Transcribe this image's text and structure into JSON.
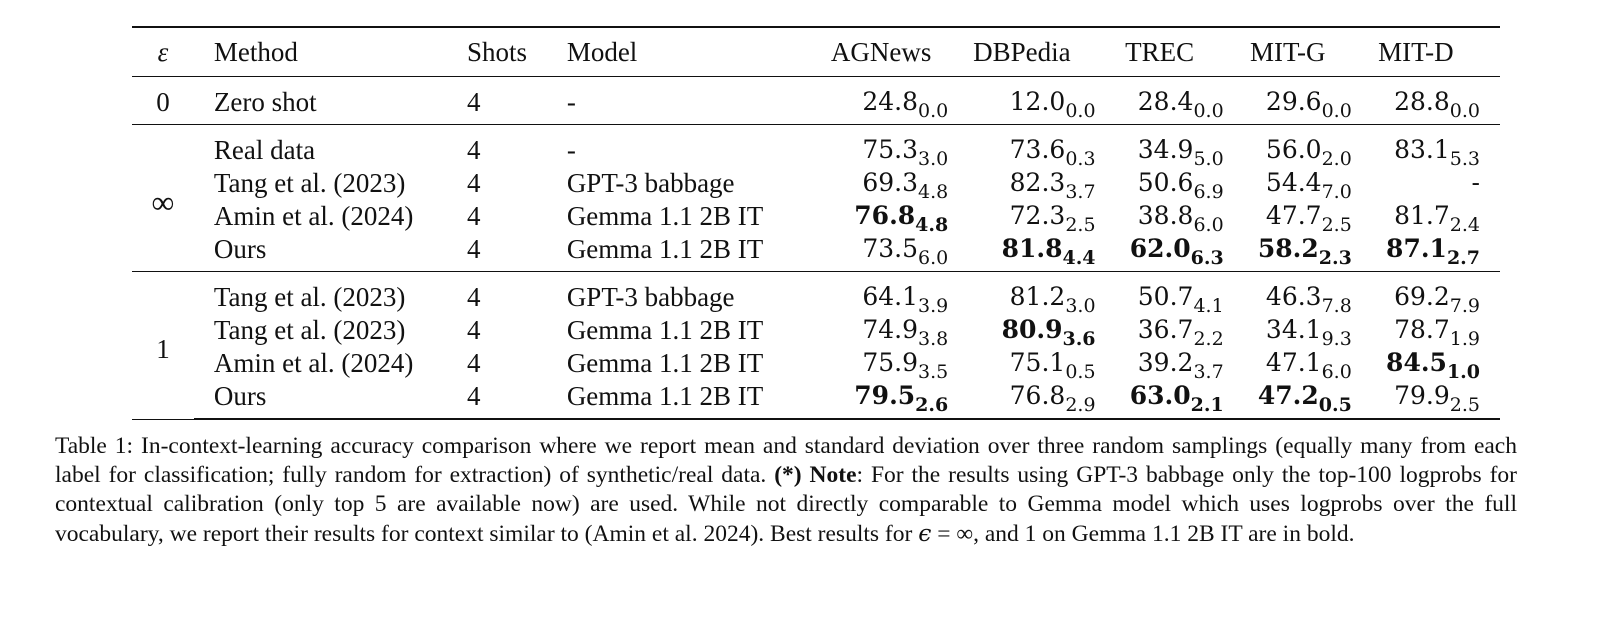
{
  "table": {
    "headers": [
      "ε",
      "Method",
      "Shots",
      "Model",
      "AGNews",
      "DBPedia",
      "TREC",
      "MIT-G",
      "MIT-D"
    ],
    "groups": [
      {
        "epsilon": "0",
        "rows": [
          {
            "method": "Zero shot",
            "method_bold": false,
            "shots": "4",
            "model": "-",
            "cells": [
              {
                "mean": "24.8",
                "std": "0.0",
                "bold": false
              },
              {
                "mean": "12.0",
                "std": "0.0",
                "bold": false
              },
              {
                "mean": "28.4",
                "std": "0.0",
                "bold": false
              },
              {
                "mean": "29.6",
                "std": "0.0",
                "bold": false
              },
              {
                "mean": "28.8",
                "std": "0.0",
                "bold": false
              }
            ]
          }
        ]
      },
      {
        "epsilon": "∞",
        "rows": [
          {
            "method": "Real data",
            "method_bold": false,
            "shots": "4",
            "model": "-",
            "cells": [
              {
                "mean": "75.3",
                "std": "3.0",
                "bold": false
              },
              {
                "mean": "73.6",
                "std": "0.3",
                "bold": false
              },
              {
                "mean": "34.9",
                "std": "5.0",
                "bold": false
              },
              {
                "mean": "56.0",
                "std": "2.0",
                "bold": false
              },
              {
                "mean": "83.1",
                "std": "5.3",
                "bold": false
              }
            ]
          },
          {
            "method": "Tang et al. (2023)",
            "method_bold": false,
            "shots": "4",
            "model": "GPT-3 babbage",
            "cells": [
              {
                "mean": "69.3",
                "std": "4.8",
                "bold": false
              },
              {
                "mean": "82.3",
                "std": "3.7",
                "bold": false
              },
              {
                "mean": "50.6",
                "std": "6.9",
                "bold": false
              },
              {
                "mean": "54.4",
                "std": "7.0",
                "bold": false
              },
              {
                "mean": "-",
                "std": "",
                "bold": false
              }
            ]
          },
          {
            "method": "Amin et al. (2024)",
            "method_bold": false,
            "shots": "4",
            "model": "Gemma 1.1 2B IT",
            "cells": [
              {
                "mean": "76.8",
                "std": "4.8",
                "bold": true
              },
              {
                "mean": "72.3",
                "std": "2.5",
                "bold": false
              },
              {
                "mean": "38.8",
                "std": "6.0",
                "bold": false
              },
              {
                "mean": "47.7",
                "std": "2.5",
                "bold": false
              },
              {
                "mean": "81.7",
                "std": "2.4",
                "bold": false
              }
            ]
          },
          {
            "method": "Ours",
            "method_bold": true,
            "shots": "4",
            "model": "Gemma 1.1 2B IT",
            "cells": [
              {
                "mean": "73.5",
                "std": "6.0",
                "bold": false
              },
              {
                "mean": "81.8",
                "std": "4.4",
                "bold": true
              },
              {
                "mean": "62.0",
                "std": "6.3",
                "bold": true
              },
              {
                "mean": "58.2",
                "std": "2.3",
                "bold": true
              },
              {
                "mean": "87.1",
                "std": "2.7",
                "bold": true
              }
            ]
          }
        ]
      },
      {
        "epsilon": "1",
        "rows": [
          {
            "method": "Tang et al. (2023)",
            "method_bold": false,
            "shots": "4",
            "model": "GPT-3 babbage",
            "cells": [
              {
                "mean": "64.1",
                "std": "3.9",
                "bold": false
              },
              {
                "mean": "81.2",
                "std": "3.0",
                "bold": false
              },
              {
                "mean": "50.7",
                "std": "4.1",
                "bold": false
              },
              {
                "mean": "46.3",
                "std": "7.8",
                "bold": false
              },
              {
                "mean": "69.2",
                "std": "7.9",
                "bold": false
              }
            ]
          },
          {
            "method": "Tang et al. (2023)",
            "method_bold": false,
            "shots": "4",
            "model": "Gemma 1.1 2B IT",
            "cells": [
              {
                "mean": "74.9",
                "std": "3.8",
                "bold": false
              },
              {
                "mean": "80.9",
                "std": "3.6",
                "bold": true
              },
              {
                "mean": "36.7",
                "std": "2.2",
                "bold": false
              },
              {
                "mean": "34.1",
                "std": "9.3",
                "bold": false
              },
              {
                "mean": "78.7",
                "std": "1.9",
                "bold": false
              }
            ]
          },
          {
            "method": "Amin et al. (2024)",
            "method_bold": false,
            "shots": "4",
            "model": "Gemma 1.1 2B IT",
            "cells": [
              {
                "mean": "75.9",
                "std": "3.5",
                "bold": false
              },
              {
                "mean": "75.1",
                "std": "0.5",
                "bold": false
              },
              {
                "mean": "39.2",
                "std": "3.7",
                "bold": false
              },
              {
                "mean": "47.1",
                "std": "6.0",
                "bold": false
              },
              {
                "mean": "84.5",
                "std": "1.0",
                "bold": true
              }
            ]
          },
          {
            "method": "Ours",
            "method_bold": true,
            "shots": "4",
            "model": "Gemma 1.1 2B IT",
            "cells": [
              {
                "mean": "79.5",
                "std": "2.6",
                "bold": true
              },
              {
                "mean": "76.8",
                "std": "2.9",
                "bold": false
              },
              {
                "mean": "63.0",
                "std": "2.1",
                "bold": true
              },
              {
                "mean": "47.2",
                "std": "0.5",
                "bold": true
              },
              {
                "mean": "79.9",
                "std": "2.5",
                "bold": false
              }
            ]
          }
        ]
      }
    ]
  },
  "caption": {
    "label": "Table 1:",
    "text_1": " In-context-learning accuracy comparison where we report mean and standard deviation over three random samplings (equally many from each label for classification; fully random for extraction) of synthetic/real data. ",
    "note_star": "(*)",
    "note_word": "Note",
    "text_2": ": For the results using GPT-3 babbage only the top-100 logprobs for contextual calibration (only top 5 are available now) are used. While not directly comparable to Gemma model which uses logprobs over the full vocabulary, we report their results for context similar to (Amin et al. 2024). Best results for ",
    "epsilon_symbol": "ϵ",
    "equals_infinity": " = ∞",
    "text_3": ", and 1 on Gemma 1.1 2B IT are in bold."
  }
}
